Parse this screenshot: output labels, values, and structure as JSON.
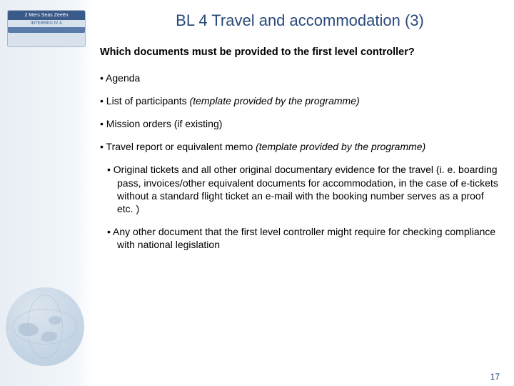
{
  "colors": {
    "heading": "#2a4a7a",
    "body_text": "#000000",
    "sidebar_bg_start": "#e8eef4",
    "sidebar_bg_end": "#ffffff",
    "logo_bar": "#3a5a8a",
    "page_num": "#1a3a6a"
  },
  "logo": {
    "line1": "2 Mers Seas Zeeën",
    "line2": "INTERREG IV A"
  },
  "title": "BL 4 Travel and accommodation (3)",
  "question": "Which documents must be provided to the first level controller?",
  "bullets": [
    {
      "text": "Agenda"
    },
    {
      "text": "List of participants ",
      "note": "(template provided by the programme)"
    },
    {
      "text": "Mission orders (if existing)"
    },
    {
      "text": "Travel report or equivalent memo ",
      "note": "(template provided by the programme)",
      "note_wrap": true
    },
    {
      "text": "Original tickets and all other original documentary evidence for the travel (i. e. boarding pass, invoices/other equivalent documents for accommodation, in the case of e-tickets without a standard flight ticket an e-mail with the booking number serves as a proof etc. )",
      "indent": true
    },
    {
      "text": "Any other document that the first level controller might require for checking compliance with national legislation",
      "indent": true
    }
  ],
  "page_number": "17"
}
